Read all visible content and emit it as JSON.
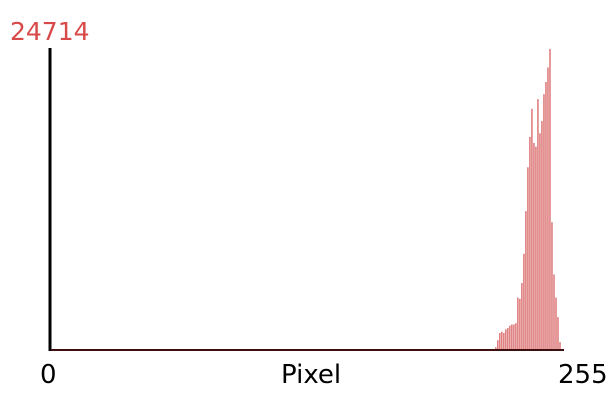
{
  "chart_data": {
    "type": "bar",
    "xlabel": "Pixel",
    "ylabel": "",
    "xlim": [
      0,
      255
    ],
    "ylim": [
      0,
      24714
    ],
    "max_label": "24714",
    "x_tick_labels": [
      "0",
      "255"
    ],
    "grid": false,
    "legend": "none",
    "bar_color": "#cc3333",
    "max_label_color": "#d84a4a",
    "axis_color": "#000000",
    "x": [
      222,
      223,
      224,
      225,
      226,
      227,
      228,
      229,
      230,
      231,
      232,
      233,
      234,
      235,
      236,
      237,
      238,
      239,
      240,
      241,
      242,
      243,
      244,
      245,
      246,
      247,
      248,
      249,
      250,
      251,
      252,
      253,
      254,
      255
    ],
    "values": [
      220,
      800,
      1400,
      1500,
      1400,
      1700,
      1800,
      2000,
      2100,
      2100,
      2200,
      4300,
      4200,
      5500,
      7900,
      11400,
      15000,
      17500,
      19800,
      17000,
      16700,
      20600,
      17800,
      18800,
      21000,
      22000,
      23200,
      24714,
      10500,
      6200,
      4300,
      2700,
      650,
      0
    ]
  }
}
